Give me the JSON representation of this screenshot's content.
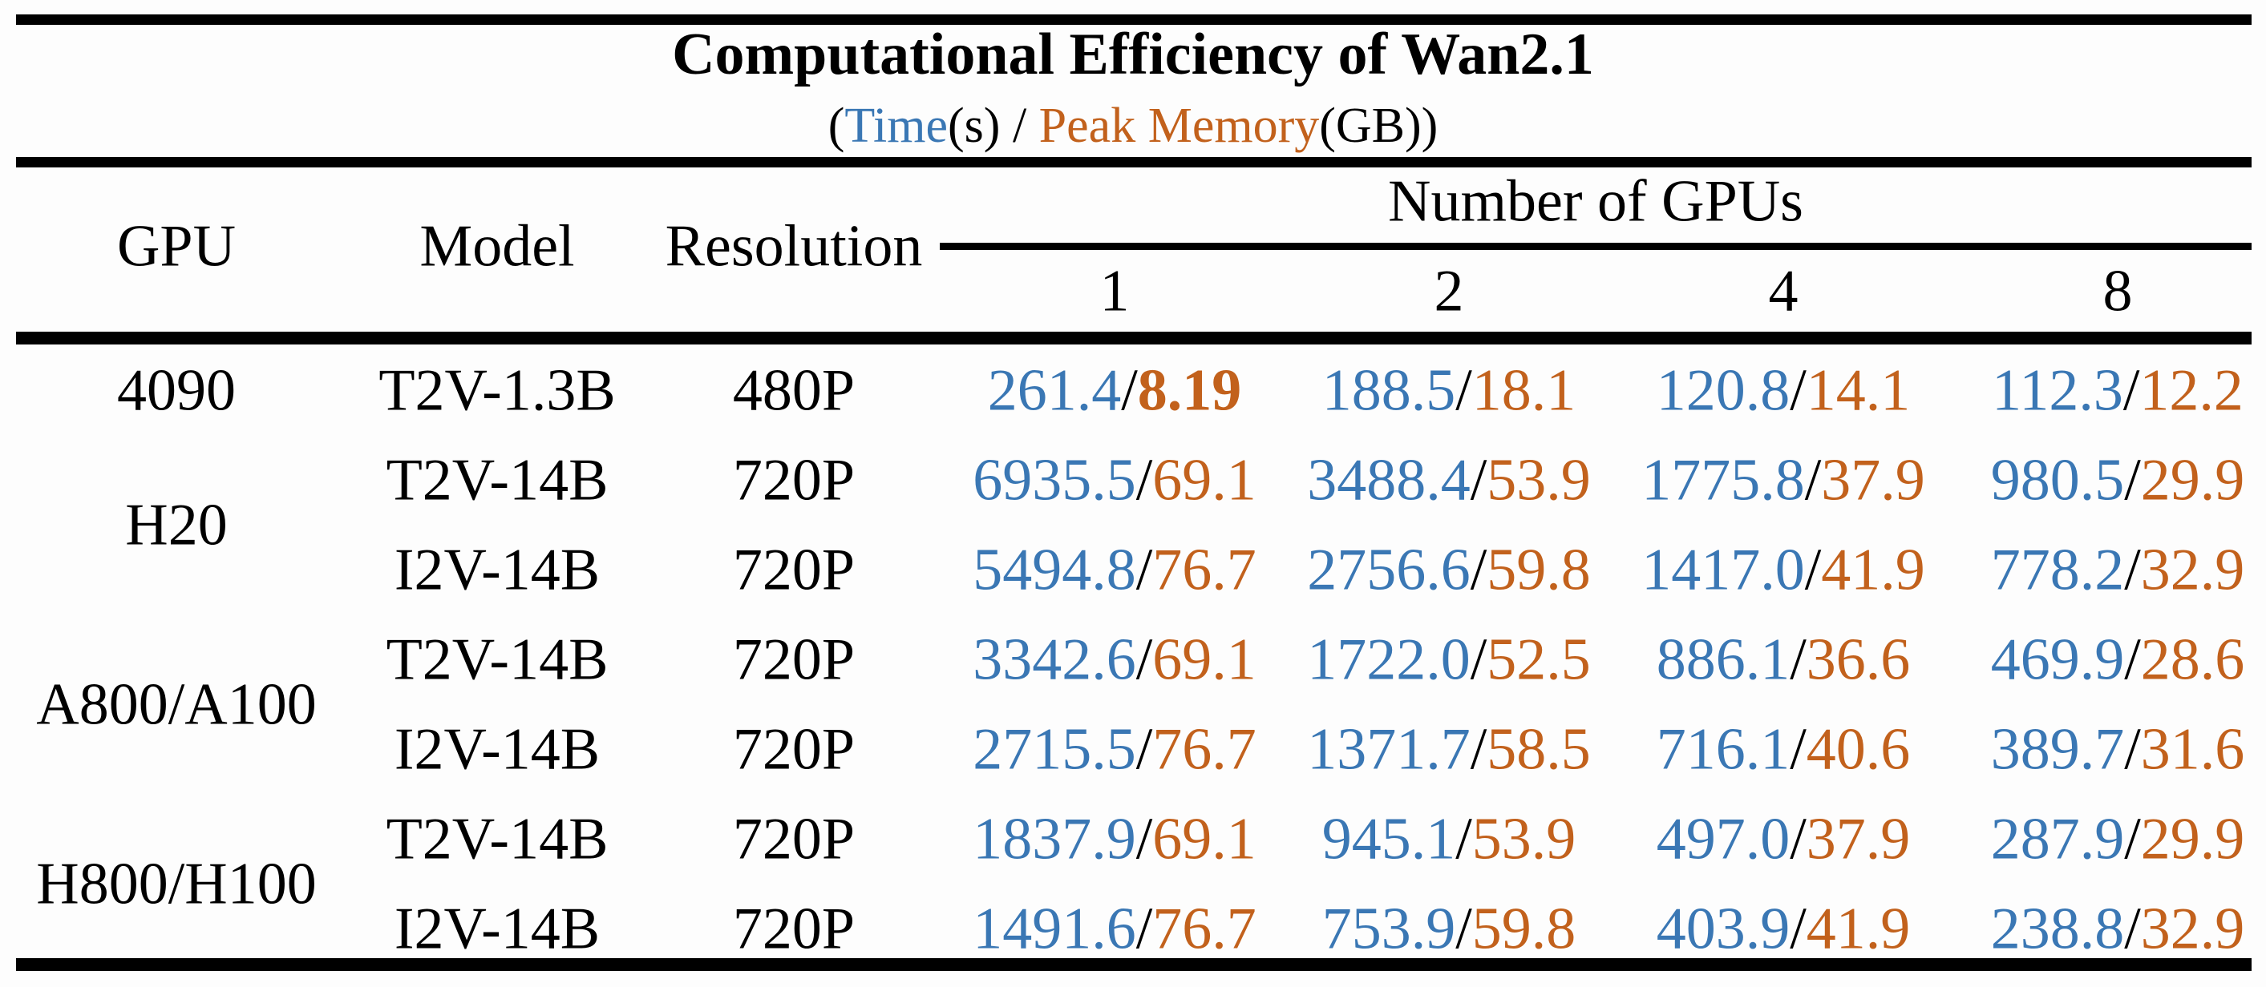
{
  "title": "Computational Efficiency of Wan2.1",
  "subtitle": {
    "prefix": "(",
    "time_label": "Time",
    "time_suffix": "(s)",
    "separator": " / ",
    "memory_label": "Peak Memory",
    "memory_suffix": "(GB))"
  },
  "colors": {
    "time_blue": "#3a77b4",
    "memory_orange": "#c2611c",
    "rule_black": "#000000"
  },
  "header": {
    "gpu": "GPU",
    "model": "Model",
    "resolution": "Resolution",
    "group_label": "Number of GPUs",
    "gpu_counts": [
      "1",
      "2",
      "4",
      "8"
    ]
  },
  "groups": [
    {
      "gpu": "4090",
      "rows": [
        {
          "model": "T2V-1.3B",
          "resolution": "480P",
          "cells": [
            {
              "time": "261.4",
              "memory": "8.19",
              "memory_bold": true
            },
            {
              "time": "188.5",
              "memory": "18.1"
            },
            {
              "time": "120.8",
              "memory": "14.1"
            },
            {
              "time": "112.3",
              "memory": "12.2"
            }
          ]
        }
      ]
    },
    {
      "gpu": "H20",
      "rows": [
        {
          "model": "T2V-14B",
          "resolution": "720P",
          "cells": [
            {
              "time": "6935.5",
              "memory": "69.1"
            },
            {
              "time": "3488.4",
              "memory": "53.9"
            },
            {
              "time": "1775.8",
              "memory": "37.9"
            },
            {
              "time": "980.5",
              "memory": "29.9"
            }
          ]
        },
        {
          "model": "I2V-14B",
          "resolution": "720P",
          "cells": [
            {
              "time": "5494.8",
              "memory": "76.7"
            },
            {
              "time": "2756.6",
              "memory": "59.8"
            },
            {
              "time": "1417.0",
              "memory": "41.9"
            },
            {
              "time": "778.2",
              "memory": "32.9"
            }
          ]
        }
      ]
    },
    {
      "gpu": "A800/A100",
      "rows": [
        {
          "model": "T2V-14B",
          "resolution": "720P",
          "cells": [
            {
              "time": "3342.6",
              "memory": "69.1"
            },
            {
              "time": "1722.0",
              "memory": "52.5"
            },
            {
              "time": "886.1",
              "memory": "36.6"
            },
            {
              "time": "469.9",
              "memory": "28.6"
            }
          ]
        },
        {
          "model": "I2V-14B",
          "resolution": "720P",
          "cells": [
            {
              "time": "2715.5",
              "memory": "76.7"
            },
            {
              "time": "1371.7",
              "memory": "58.5"
            },
            {
              "time": "716.1",
              "memory": "40.6"
            },
            {
              "time": "389.7",
              "memory": "31.6"
            }
          ]
        }
      ]
    },
    {
      "gpu": "H800/H100",
      "rows": [
        {
          "model": "T2V-14B",
          "resolution": "720P",
          "cells": [
            {
              "time": "1837.9",
              "memory": "69.1"
            },
            {
              "time": "945.1",
              "memory": "53.9"
            },
            {
              "time": "497.0",
              "memory": "37.9"
            },
            {
              "time": "287.9",
              "memory": "29.9"
            }
          ]
        },
        {
          "model": "I2V-14B",
          "resolution": "720P",
          "cells": [
            {
              "time": "1491.6",
              "memory": "76.7"
            },
            {
              "time": "753.9",
              "memory": "59.8"
            },
            {
              "time": "403.9",
              "memory": "41.9"
            },
            {
              "time": "238.8",
              "memory": "32.9"
            }
          ]
        }
      ]
    }
  ],
  "chart_data": {
    "type": "table",
    "title": "Computational Efficiency of Wan2.1",
    "subtitle": "(Time(s) / Peak Memory(GB))",
    "unit": "Time(s) / Peak Memory(GB)",
    "columns": [
      "GPU",
      "Model",
      "Resolution",
      "1",
      "2",
      "4",
      "8"
    ],
    "column_group": {
      "label": "Number of GPUs",
      "spans": [
        "1",
        "2",
        "4",
        "8"
      ]
    },
    "rows": [
      [
        "4090",
        "T2V-1.3B",
        "480P",
        "261.4/8.19",
        "188.5/18.1",
        "120.8/14.1",
        "112.3/12.2"
      ],
      [
        "H20",
        "T2V-14B",
        "720P",
        "6935.5/69.1",
        "3488.4/53.9",
        "1775.8/37.9",
        "980.5/29.9"
      ],
      [
        "H20",
        "I2V-14B",
        "720P",
        "5494.8/76.7",
        "2756.6/59.8",
        "1417.0/41.9",
        "778.2/32.9"
      ],
      [
        "A800/A100",
        "T2V-14B",
        "720P",
        "3342.6/69.1",
        "1722.0/52.5",
        "886.1/36.6",
        "469.9/28.6"
      ],
      [
        "A800/A100",
        "I2V-14B",
        "720P",
        "2715.5/76.7",
        "1371.7/58.5",
        "716.1/40.6",
        "389.7/31.6"
      ],
      [
        "H800/H100",
        "T2V-14B",
        "720P",
        "1837.9/69.1",
        "945.1/53.9",
        "497.0/37.9",
        "287.9/29.9"
      ],
      [
        "H800/H100",
        "I2V-14B",
        "720P",
        "1491.6/76.7",
        "753.9/59.8",
        "403.9/41.9",
        "238.8/32.9"
      ]
    ],
    "notes": "time values rendered blue, peak-memory values rendered orange; 8.19 is bold"
  }
}
